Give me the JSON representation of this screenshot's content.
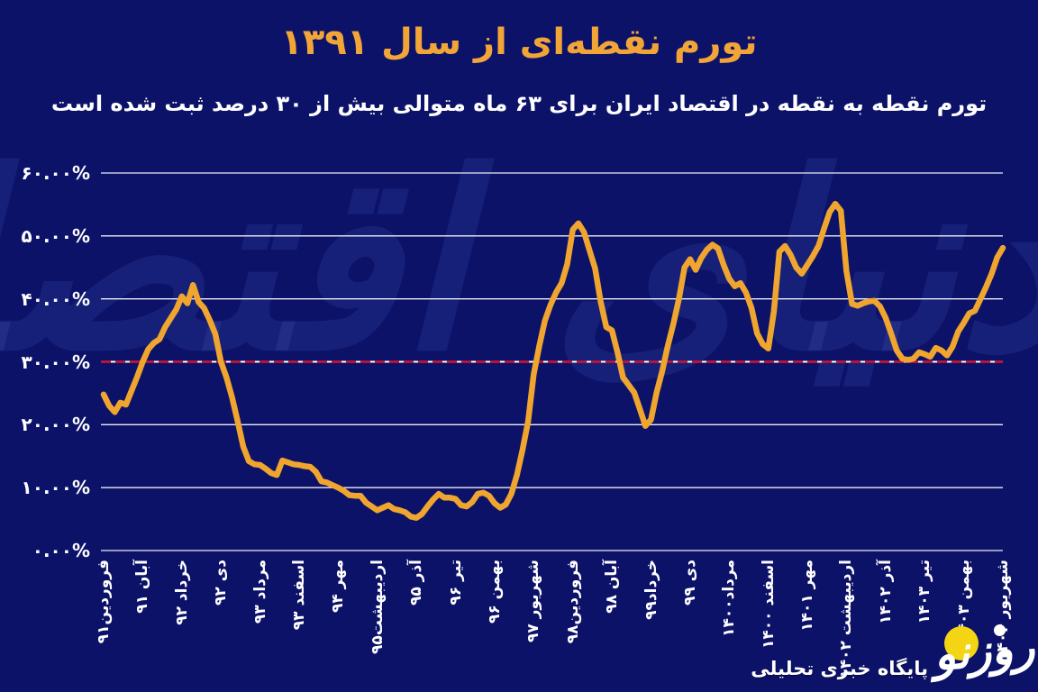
{
  "title": "تورم نقطه‌ای از سال ۱۳۹۱",
  "subtitle": "تورم نقطه به نقطه در اقتصاد ایران برای ۶۳ ماه متوالی بیش از ۳۰ درصد ثبت شده است",
  "watermark": "دنیای اقتصاد",
  "logo": {
    "name": "روزنو",
    "tagline": "پایگاه خبری تحلیلی"
  },
  "colors": {
    "background": "#0d1269",
    "title_text": "#f2a537",
    "line": "#efa52e",
    "grid": "#ffffff",
    "threshold_red": "#c21433",
    "logo_yellow": "#f4d513"
  },
  "chart_data": {
    "type": "line",
    "title": "تورم نقطه‌ای از سال ۱۳۹۱",
    "unit": "percent (point-to-point monthly inflation, Iran)",
    "start_month": "فروردین ۱۳۹۱",
    "end_month": "شهریور ۱۴۰۴",
    "grid": true,
    "ylim": [
      0,
      63
    ],
    "y_ticks": [
      60,
      50,
      40,
      30,
      20,
      10,
      0
    ],
    "y_tick_labels": [
      "۶۰.۰۰%",
      "۵۰.۰۰%",
      "۴۰.۰۰%",
      "۳۰.۰۰%",
      "۲۰.۰۰%",
      "۱۰.۰۰%",
      "۰.۰۰%"
    ],
    "threshold": 30,
    "x_tick_every_n_months": 7,
    "x_tick_labels": [
      "فروردین۹۱",
      "آبان ۹۱",
      "خرداد ۹۲",
      "دی ۹۲",
      "مرداد ۹۳",
      "اسفند ۹۳",
      "مهر ۹۴",
      "اردیبهشت۹۵",
      "آذر ۹۵",
      "تیر ۹۶",
      "بهمن ۹۶",
      "شهریور ۹۷",
      "فروردین۹۸",
      "آبان ۹۸",
      "خرداد۹۹",
      "دی ۹۹",
      "مرداد۱۴۰۰",
      "اسفند ۱۴۰۰",
      "مهر ۱۴۰۱",
      "اردیبهشت ۱۴۰۲",
      "آذر ۱۴۰۲",
      "تیر ۱۴۰۳",
      "بهمن ۱۴۰۳",
      "شهریور ۱۴۰۴"
    ],
    "values": [
      24.8,
      23.0,
      22.0,
      23.5,
      23.2,
      25.4,
      27.6,
      30.0,
      32.0,
      33.0,
      33.6,
      35.5,
      36.9,
      38.3,
      40.4,
      39.3,
      42.2,
      39.5,
      38.5,
      36.6,
      34.4,
      30.0,
      27.5,
      24.3,
      20.5,
      16.5,
      14.2,
      13.7,
      13.6,
      13.0,
      12.3,
      12.0,
      14.3,
      14.0,
      13.7,
      13.6,
      13.4,
      13.3,
      12.5,
      11.0,
      10.8,
      10.4,
      10.0,
      9.5,
      8.8,
      8.7,
      8.7,
      7.6,
      7.0,
      6.4,
      6.8,
      7.2,
      6.6,
      6.4,
      6.1,
      5.4,
      5.2,
      5.8,
      7.0,
      8.1,
      9.0,
      8.4,
      8.4,
      8.2,
      7.2,
      7.0,
      7.7,
      9.0,
      9.2,
      8.7,
      7.5,
      6.8,
      7.3,
      9.0,
      12.0,
      16.0,
      20.5,
      28.0,
      32.5,
      36.5,
      39.0,
      41.0,
      42.5,
      45.5,
      51.0,
      52.0,
      50.6,
      47.7,
      44.8,
      39.5,
      35.5,
      35.0,
      31.5,
      27.5,
      26.3,
      25.1,
      22.5,
      19.8,
      20.8,
      25.1,
      28.5,
      32.5,
      36.0,
      40.0,
      45.0,
      46.3,
      44.6,
      46.5,
      47.8,
      48.6,
      48.0,
      45.4,
      43.2,
      42.0,
      42.5,
      41.0,
      38.5,
      34.5,
      32.8,
      32.1,
      38.0,
      47.5,
      48.4,
      47.0,
      45.0,
      44.0,
      45.4,
      46.8,
      48.4,
      51.2,
      53.8,
      55.1,
      54.0,
      44.4,
      39.2,
      38.9,
      39.3,
      39.6,
      39.7,
      38.8,
      37.0,
      34.5,
      31.8,
      30.5,
      30.3,
      30.5,
      31.5,
      31.2,
      30.8,
      32.2,
      31.8,
      31.0,
      32.4,
      34.8,
      36.2,
      37.7,
      38.1,
      40.0,
      41.9,
      44.0,
      46.6,
      48.1
    ]
  }
}
